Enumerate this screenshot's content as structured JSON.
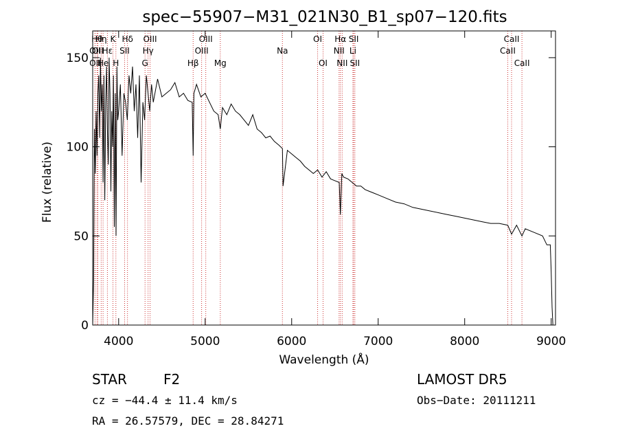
{
  "chart_data": {
    "type": "line",
    "title": "spec−55907−M31_021N30_B1_sp07−120.fits",
    "xlabel": "Wavelength (Å)",
    "ylabel": "Flux (relative)",
    "xlim": [
      3700,
      9050
    ],
    "ylim": [
      0,
      165
    ],
    "xticks": [
      4000,
      5000,
      6000,
      7000,
      8000,
      9000
    ],
    "yticks": [
      0,
      50,
      100,
      150
    ],
    "line_color": "#000000",
    "marker_color": "#cc3333",
    "series": [
      {
        "x": [
          3700,
          3710,
          3720,
          3730,
          3740,
          3750,
          3760,
          3770,
          3780,
          3790,
          3800,
          3810,
          3820,
          3830,
          3840,
          3850,
          3860,
          3870,
          3880,
          3890,
          3900,
          3910,
          3920,
          3930,
          3940,
          3950,
          3960,
          3970,
          3980,
          3990,
          4000,
          4020,
          4040,
          4060,
          4080,
          4100,
          4120,
          4140,
          4160,
          4180,
          4200,
          4220,
          4240,
          4260,
          4280,
          4300,
          4320,
          4340,
          4360,
          4380,
          4400,
          4450,
          4500,
          4550,
          4600,
          4650,
          4700,
          4750,
          4800,
          4850,
          4861,
          4870,
          4900,
          4950,
          5000,
          5050,
          5100,
          5150,
          5175,
          5200,
          5250,
          5300,
          5350,
          5400,
          5450,
          5500,
          5550,
          5600,
          5650,
          5700,
          5750,
          5800,
          5850,
          5893,
          5900,
          5950,
          6000,
          6050,
          6100,
          6150,
          6200,
          6250,
          6300,
          6350,
          6400,
          6450,
          6500,
          6550,
          6563,
          6580,
          6600,
          6650,
          6700,
          6750,
          6800,
          6850,
          6900,
          6950,
          7000,
          7100,
          7200,
          7300,
          7400,
          7500,
          7600,
          7700,
          7800,
          7900,
          8000,
          8100,
          8200,
          8300,
          8400,
          8498,
          8542,
          8600,
          8662,
          8700,
          8800,
          8900,
          8950,
          8990,
          9000,
          9010,
          9020
        ],
        "y": [
          0,
          25,
          110,
          85,
          120,
          95,
          130,
          140,
          105,
          150,
          120,
          135,
          80,
          140,
          70,
          125,
          145,
          110,
          90,
          150,
          130,
          75,
          120,
          100,
          140,
          55,
          130,
          50,
          145,
          115,
          120,
          135,
          95,
          130,
          125,
          115,
          140,
          130,
          145,
          120,
          135,
          105,
          140,
          80,
          125,
          115,
          140,
          130,
          120,
          135,
          125,
          138,
          128,
          130,
          132,
          136,
          128,
          130,
          126,
          125,
          95,
          130,
          135,
          128,
          130,
          125,
          120,
          118,
          110,
          122,
          118,
          124,
          120,
          118,
          115,
          112,
          118,
          110,
          108,
          105,
          106,
          103,
          101,
          99,
          78,
          98,
          96,
          94,
          92,
          89,
          87,
          85,
          87,
          83,
          86,
          82,
          81,
          80,
          62,
          85,
          83,
          82,
          80,
          78,
          78,
          76,
          75,
          74,
          73,
          71,
          69,
          68,
          66,
          65,
          64,
          63,
          62,
          61,
          60,
          59,
          58,
          57,
          57,
          56,
          51,
          56,
          50,
          54,
          52,
          50,
          45,
          45,
          30,
          10,
          0
        ]
      }
    ],
    "lines": [
      {
        "label": "Hθ",
        "x": 3750,
        "row": 0
      },
      {
        "label": "OII",
        "x": 3727,
        "row": 1
      },
      {
        "label": "OII",
        "x": 3727,
        "row": 2
      },
      {
        "label": "Hη",
        "x": 3798,
        "row": 0
      },
      {
        "label": "OII",
        "x": 3760,
        "row": 1
      },
      {
        "label": "He",
        "x": 3820,
        "row": 2
      },
      {
        "label": "K",
        "x": 3934,
        "row": 0
      },
      {
        "label": "Hε",
        "x": 3870,
        "row": 1
      },
      {
        "label": "H",
        "x": 3968,
        "row": 2
      },
      {
        "label": "Hδ",
        "x": 4102,
        "row": 0
      },
      {
        "label": "SII",
        "x": 4069,
        "row": 1
      },
      {
        "label": "OIII",
        "x": 4363,
        "row": 0
      },
      {
        "label": "Hγ",
        "x": 4340,
        "row": 1
      },
      {
        "label": "G",
        "x": 4305,
        "row": 2
      },
      {
        "label": "OIII",
        "x": 5007,
        "row": 0
      },
      {
        "label": "OIII",
        "x": 4959,
        "row": 1
      },
      {
        "label": "Hβ",
        "x": 4861,
        "row": 2
      },
      {
        "label": "Mg",
        "x": 5175,
        "row": 2
      },
      {
        "label": "Na",
        "x": 5893,
        "row": 1
      },
      {
        "label": "OI",
        "x": 6300,
        "row": 0
      },
      {
        "label": "OI",
        "x": 6363,
        "row": 2
      },
      {
        "label": "Hα",
        "x": 6563,
        "row": 0
      },
      {
        "label": "NII",
        "x": 6548,
        "row": 1
      },
      {
        "label": "NII",
        "x": 6584,
        "row": 2
      },
      {
        "label": "SII",
        "x": 6717,
        "row": 0
      },
      {
        "label": "Li",
        "x": 6708,
        "row": 1
      },
      {
        "label": "SII",
        "x": 6731,
        "row": 2
      },
      {
        "label": "CaII",
        "x": 8542,
        "row": 0
      },
      {
        "label": "CaII",
        "x": 8498,
        "row": 1
      },
      {
        "label": "CaII",
        "x": 8662,
        "row": 2
      }
    ]
  },
  "footer": {
    "class_label": "STAR",
    "subclass": "F2",
    "survey": "LAMOST DR5",
    "cz": "cz = −44.4 ± 11.4 km/s",
    "obs_date": "Obs−Date: 20111211",
    "radec": "RA =  26.57579, DEC =  28.84271"
  }
}
